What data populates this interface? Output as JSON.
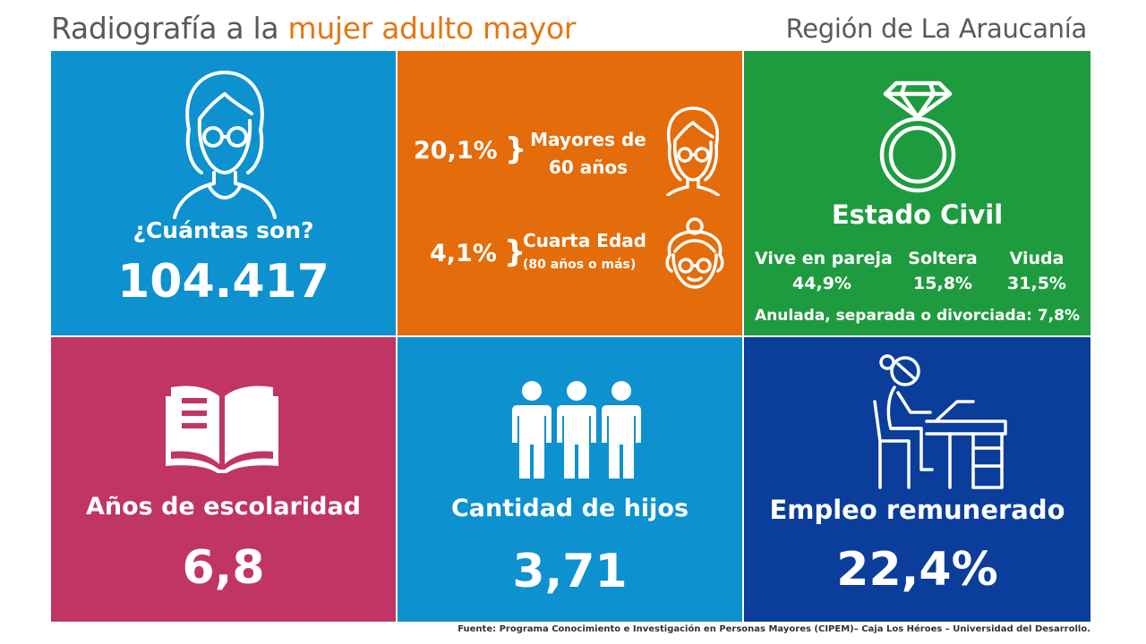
{
  "header": {
    "title_prefix": "Radiografía a la ",
    "title_highlight": "mujer adulto mayor",
    "region": "Región de La Araucanía"
  },
  "tiles": {
    "cuantas": {
      "label": "¿Cuántas son?",
      "value": "104.417",
      "icon": "elderly-woman-icon"
    },
    "edades": {
      "mayores_pct": "20,1%",
      "mayores_label_1": "Mayores de",
      "mayores_label_2": "60 años",
      "cuarta_pct": "4,1%",
      "cuarta_label": "Cuarta Edad",
      "cuarta_sub": "(80 años o más)"
    },
    "estado_civil": {
      "title": "Estado Civil",
      "items": [
        {
          "label": "Vive en pareja",
          "value": "44,9%"
        },
        {
          "label": "Soltera",
          "value": "15,8%"
        },
        {
          "label": "Viuda",
          "value": "31,5%"
        }
      ],
      "anulada_label": "Anulada, separada o divorciada: 7,8%",
      "icon": "ring-icon"
    },
    "escolaridad": {
      "label": "Años de escolaridad",
      "value": "6,8",
      "icon": "book-icon"
    },
    "hijos": {
      "label": "Cantidad de hijos",
      "value": "3,71",
      "icon": "people-icon"
    },
    "empleo": {
      "label": "Empleo remunerado",
      "value": "22,4%",
      "icon": "worker-desk-icon"
    }
  },
  "colors": {
    "blue": "#0d91cf",
    "orange": "#e46c0a",
    "green": "#1f9b3f",
    "magenta": "#c03466",
    "navy": "#0b3e9a",
    "title_accent": "#e37711"
  },
  "footer": "Fuente: Programa Conocimiento e Investigación  en Personas Mayores (CIPEM)–  Caja Los Héroes – Universidad  del Desarrollo."
}
